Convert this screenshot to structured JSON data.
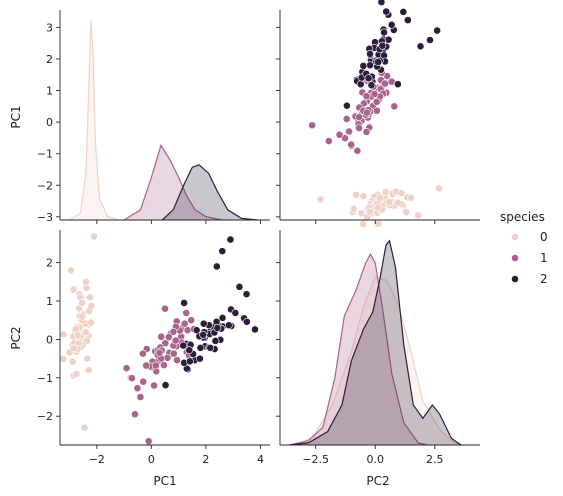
{
  "chart_data": {
    "type": "pairplot",
    "variables": [
      "PC1",
      "PC2"
    ],
    "hue": {
      "title": "species",
      "levels": [
        "0",
        "1",
        "2"
      ],
      "colors": [
        "#efd2c6",
        "#a8648c",
        "#2c1d3c"
      ]
    },
    "axis_ranges": {
      "PC1": [
        -3.05,
        3.55
      ],
      "PC2": [
        -2.75,
        2.85
      ]
    },
    "kde_x_range": [
      -3.4,
      4.4
    ],
    "ticks": {
      "PC1_as_x": [
        -2,
        0,
        2,
        4
      ],
      "PC1_as_y": [
        -3,
        -2,
        -1,
        0,
        1,
        2,
        3
      ],
      "PC2_as_x": [
        -2.5,
        0.0,
        2.5
      ],
      "PC2_as_y": [
        -2,
        -1,
        0,
        1,
        2
      ]
    },
    "tick_labels": {
      "PC1_as_x": [
        "−2",
        "0",
        "2",
        "4"
      ],
      "PC1_as_y": [
        "−3",
        "−2",
        "−1",
        "0",
        "1",
        "2",
        "3"
      ],
      "PC2_as_x": [
        "−2.5",
        "0.0",
        "2.5"
      ],
      "PC2_as_y": [
        "−2",
        "−1",
        "0",
        "1",
        "2"
      ]
    },
    "kde_PC1": {
      "0": [
        [
          -3.0,
          0
        ],
        [
          -2.6,
          0.08
        ],
        [
          -2.4,
          0.55
        ],
        [
          -2.3,
          1.5
        ],
        [
          -2.22,
          2.35
        ],
        [
          -2.15,
          2.05
        ],
        [
          -2.05,
          0.9
        ],
        [
          -1.9,
          0.25
        ],
        [
          -1.6,
          0.04
        ],
        [
          -1.2,
          0
        ]
      ],
      "1": [
        [
          -1.0,
          0
        ],
        [
          -0.4,
          0.12
        ],
        [
          0.0,
          0.5
        ],
        [
          0.35,
          0.88
        ],
        [
          0.7,
          0.7
        ],
        [
          1.0,
          0.5
        ],
        [
          1.3,
          0.28
        ],
        [
          1.6,
          0.12
        ],
        [
          2.0,
          0.04
        ],
        [
          2.6,
          0
        ]
      ],
      "2": [
        [
          0.4,
          0
        ],
        [
          0.8,
          0.12
        ],
        [
          1.2,
          0.42
        ],
        [
          1.5,
          0.62
        ],
        [
          1.75,
          0.65
        ],
        [
          2.1,
          0.55
        ],
        [
          2.4,
          0.35
        ],
        [
          2.8,
          0.12
        ],
        [
          3.3,
          0.02
        ],
        [
          3.9,
          0
        ]
      ]
    },
    "kde_PC2": {
      "0": [
        [
          -3.2,
          0
        ],
        [
          -2.6,
          0.04
        ],
        [
          -1.8,
          0.18
        ],
        [
          -1.0,
          0.42
        ],
        [
          -0.5,
          0.62
        ],
        [
          0.0,
          0.76
        ],
        [
          0.5,
          0.74
        ],
        [
          1.0,
          0.62
        ],
        [
          1.5,
          0.42
        ],
        [
          2.0,
          0.2
        ],
        [
          2.7,
          0.07
        ],
        [
          3.3,
          0.01
        ],
        [
          3.7,
          0
        ]
      ],
      "1": [
        [
          -3.6,
          0
        ],
        [
          -2.8,
          0.02
        ],
        [
          -2.2,
          0.08
        ],
        [
          -1.7,
          0.3
        ],
        [
          -1.3,
          0.58
        ],
        [
          -0.8,
          0.7
        ],
        [
          -0.4,
          0.82
        ],
        [
          -0.2,
          0.86
        ],
        [
          0.0,
          0.82
        ],
        [
          0.3,
          0.62
        ],
        [
          0.7,
          0.32
        ],
        [
          1.2,
          0.1
        ],
        [
          1.8,
          0.01
        ],
        [
          2.2,
          0
        ]
      ],
      "2": [
        [
          -3.6,
          0
        ],
        [
          -2.8,
          0.01
        ],
        [
          -2.0,
          0.06
        ],
        [
          -1.4,
          0.18
        ],
        [
          -1.0,
          0.38
        ],
        [
          -0.5,
          0.52
        ],
        [
          -0.1,
          0.6
        ],
        [
          0.2,
          0.75
        ],
        [
          0.45,
          0.9
        ],
        [
          0.6,
          0.92
        ],
        [
          0.85,
          0.8
        ],
        [
          1.2,
          0.45
        ],
        [
          1.6,
          0.18
        ],
        [
          2.0,
          0.12
        ],
        [
          2.4,
          0.18
        ],
        [
          2.7,
          0.14
        ],
        [
          3.2,
          0.03
        ],
        [
          3.6,
          0
        ]
      ]
    },
    "points": {
      "0": [
        [
          -2.68,
          0.32
        ],
        [
          -2.71,
          -0.18
        ],
        [
          -2.89,
          -0.14
        ],
        [
          -2.75,
          -0.32
        ],
        [
          -2.73,
          0.33
        ],
        [
          -2.28,
          0.74
        ],
        [
          -2.82,
          -0.09
        ],
        [
          -2.63,
          0.16
        ],
        [
          -2.89,
          -0.58
        ],
        [
          -2.67,
          -0.11
        ],
        [
          -2.51,
          0.65
        ],
        [
          -2.61,
          0.01
        ],
        [
          -2.79,
          -0.24
        ],
        [
          -3.23,
          -0.51
        ],
        [
          -2.64,
          1.18
        ],
        [
          -2.38,
          1.34
        ],
        [
          -2.62,
          0.81
        ],
        [
          -2.65,
          0.31
        ],
        [
          -2.2,
          0.87
        ],
        [
          -2.59,
          0.51
        ],
        [
          -2.31,
          0.39
        ],
        [
          -2.54,
          0.43
        ],
        [
          -3.22,
          0.13
        ],
        [
          -2.3,
          0.1
        ],
        [
          -2.36,
          -0.04
        ],
        [
          -2.51,
          -0.15
        ],
        [
          -2.47,
          0.14
        ],
        [
          -2.56,
          0.37
        ],
        [
          -2.64,
          0.31
        ],
        [
          -2.63,
          -0.19
        ],
        [
          -2.59,
          -0.2
        ],
        [
          -2.41,
          0.41
        ],
        [
          -2.65,
          0.81
        ],
        [
          -2.6,
          1.1
        ],
        [
          -2.67,
          -0.11
        ],
        [
          -2.87,
          0.08
        ],
        [
          -2.63,
          0.61
        ],
        [
          -2.8,
          0.25
        ],
        [
          -2.99,
          -0.34
        ],
        [
          -2.59,
          0.09
        ],
        [
          -2.77,
          0.27
        ],
        [
          -2.85,
          -0.94
        ],
        [
          -3.0,
          -0.34
        ],
        [
          -2.41,
          0.19
        ],
        [
          -2.21,
          0.44
        ],
        [
          -2.71,
          -0.25
        ],
        [
          -2.54,
          0.5
        ],
        [
          -2.84,
          -0.23
        ],
        [
          -2.54,
          0.59
        ],
        [
          -2.7,
          0.11
        ],
        [
          -2.1,
          2.68
        ],
        [
          -2.95,
          1.8
        ],
        [
          -2.45,
          -2.3
        ],
        [
          -2.3,
          -0.8
        ],
        [
          -2.4,
          1.5
        ],
        [
          -2.75,
          -0.9
        ],
        [
          -2.55,
          0.95
        ],
        [
          -2.35,
          -0.5
        ],
        [
          -2.25,
          1.1
        ],
        [
          -2.85,
          1.3
        ]
      ],
      "1": [
        [
          1.28,
          0.69
        ],
        [
          0.93,
          0.32
        ],
        [
          1.46,
          0.5
        ],
        [
          0.18,
          -0.83
        ],
        [
          1.09,
          0.07
        ],
        [
          0.64,
          -0.42
        ],
        [
          1.1,
          0.28
        ],
        [
          -0.75,
          -1.0
        ],
        [
          1.04,
          0.23
        ],
        [
          -0.01,
          -0.72
        ],
        [
          -0.51,
          -1.27
        ],
        [
          0.51,
          -0.1
        ],
        [
          0.26,
          -0.55
        ],
        [
          0.98,
          -0.12
        ],
        [
          -0.17,
          -0.25
        ],
        [
          0.93,
          0.47
        ],
        [
          0.66,
          -0.35
        ],
        [
          0.23,
          -0.33
        ],
        [
          0.94,
          -0.54
        ],
        [
          0.04,
          -0.58
        ],
        [
          1.12,
          -0.08
        ],
        [
          0.36,
          0.07
        ],
        [
          1.3,
          -0.33
        ],
        [
          0.92,
          -0.18
        ],
        [
          0.71,
          0.15
        ],
        [
          0.9,
          0.33
        ],
        [
          1.33,
          0.24
        ],
        [
          1.56,
          0.27
        ],
        [
          0.81,
          -0.16
        ],
        [
          -0.31,
          -0.37
        ],
        [
          -0.07,
          -0.7
        ],
        [
          -0.19,
          -0.68
        ],
        [
          0.14,
          -0.31
        ],
        [
          1.38,
          -0.42
        ],
        [
          0.59,
          -0.48
        ],
        [
          0.81,
          0.2
        ],
        [
          1.22,
          0.41
        ],
        [
          0.82,
          -0.37
        ],
        [
          0.25,
          -0.27
        ],
        [
          0.16,
          -0.68
        ],
        [
          0.46,
          -0.67
        ],
        [
          0.89,
          -0.03
        ],
        [
          0.23,
          -0.4
        ],
        [
          -0.71,
          -1.01
        ],
        [
          0.36,
          -0.5
        ],
        [
          0.33,
          -0.21
        ],
        [
          0.38,
          -0.29
        ],
        [
          0.64,
          0.06
        ],
        [
          -0.91,
          -0.75
        ],
        [
          0.3,
          -0.35
        ],
        [
          -0.4,
          -1.5
        ],
        [
          -0.6,
          -1.95
        ],
        [
          -0.1,
          -2.65
        ],
        [
          0.1,
          -1.2
        ],
        [
          0.5,
          0.8
        ],
        [
          -0.3,
          -1.1
        ]
      ],
      "2": [
        [
          2.53,
          -0.01
        ],
        [
          1.41,
          -0.57
        ],
        [
          2.62,
          0.34
        ],
        [
          1.97,
          -0.18
        ],
        [
          2.35,
          -0.04
        ],
        [
          3.4,
          0.55
        ],
        [
          0.52,
          -1.19
        ],
        [
          2.93,
          0.35
        ],
        [
          2.32,
          -0.25
        ],
        [
          2.92,
          0.78
        ],
        [
          1.66,
          0.24
        ],
        [
          1.8,
          -0.22
        ],
        [
          2.17,
          0.22
        ],
        [
          1.34,
          -0.78
        ],
        [
          1.59,
          -0.54
        ],
        [
          1.9,
          0.12
        ],
        [
          1.95,
          0.04
        ],
        [
          3.49,
          1.18
        ],
        [
          3.8,
          0.26
        ],
        [
          1.3,
          -0.76
        ],
        [
          2.43,
          0.38
        ],
        [
          1.2,
          -0.61
        ],
        [
          3.5,
          0.46
        ],
        [
          1.39,
          -0.2
        ],
        [
          2.28,
          0.33
        ],
        [
          2.61,
          0.56
        ],
        [
          1.26,
          -0.18
        ],
        [
          1.29,
          -0.12
        ],
        [
          2.12,
          -0.21
        ],
        [
          2.39,
          0.46
        ],
        [
          2.84,
          0.37
        ],
        [
          3.23,
          1.37
        ],
        [
          2.16,
          -0.22
        ],
        [
          1.44,
          -0.14
        ],
        [
          1.78,
          -0.5
        ],
        [
          3.08,
          0.69
        ],
        [
          2.14,
          0.14
        ],
        [
          1.9,
          0.05
        ],
        [
          1.17,
          -0.16
        ],
        [
          2.11,
          0.37
        ],
        [
          2.31,
          0.18
        ],
        [
          1.92,
          0.41
        ],
        [
          1.41,
          -0.57
        ],
        [
          2.56,
          0.28
        ],
        [
          2.42,
          0.3
        ],
        [
          1.94,
          0.19
        ],
        [
          1.53,
          -0.38
        ],
        [
          1.76,
          0.08
        ],
        [
          1.9,
          0.12
        ],
        [
          1.39,
          -0.28
        ],
        [
          2.9,
          2.6
        ],
        [
          2.6,
          2.3
        ],
        [
          2.4,
          1.9
        ],
        [
          1.2,
          0.95
        ]
      ]
    }
  },
  "axes": {
    "PC1": "PC1",
    "PC2": "PC2"
  }
}
